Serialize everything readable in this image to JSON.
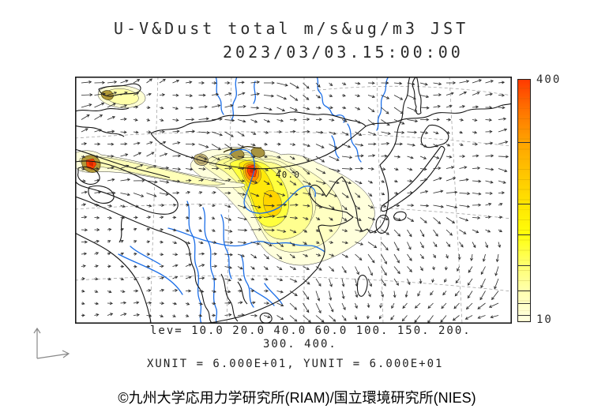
{
  "title": {
    "line1": "U-V&Dust total m/s&ug/m3 JST",
    "line2": "2023/03/03.15:00:00"
  },
  "captions": {
    "levels_line1": "lev= 10.0 20.0 40.0 60.0 100. 150. 200.",
    "levels_line2": "300. 400.",
    "units": "XUNIT = 6.000E+01, YUNIT = 6.000E+01",
    "copyright": "©九州大学応用力学研究所(RIAM)/国立環境研究所(NIES)"
  },
  "colorbar": {
    "max_label": "400",
    "min_label": "10",
    "min": 10,
    "max": 400,
    "tick_values": [
      20,
      40,
      60,
      100,
      150,
      200,
      300
    ],
    "top_color": "#FF3A00",
    "bottom_color": "#FFFFE2"
  },
  "map": {
    "contour_label": "40.0",
    "coast_color": "#151515",
    "river_color": "#1C6FE8",
    "graticule_color": "#9a9a9a",
    "dust_low_color": "#FFFFDC",
    "dust_high_color": "#FF4000",
    "wind": {
      "spacing_x": 16.5,
      "spacing_y": 15.5,
      "color": "#2B2B2B"
    }
  },
  "chart_data": {
    "type": "heatmap",
    "title": "U-V&Dust total m/s&ug/m3 JST",
    "timestamp": "2023/03/03.15:00:00",
    "region": "East Asia dust transport forecast map with wind vector overlay",
    "contour_levels": [
      10.0,
      20.0,
      40.0,
      60.0,
      100.0,
      150.0,
      200.0,
      300.0,
      400.0
    ],
    "colorbar_range": [
      10,
      400
    ],
    "legend_position": "right",
    "units": {
      "wind": "m/s",
      "dust": "ug/m3",
      "time_zone": "JST",
      "xunit": "6.000E+01",
      "yunit": "6.000E+01"
    },
    "visible_contour_labels": [
      "40.0"
    ],
    "dust_features": [
      {
        "location": "Gobi / Loess plateau main plume",
        "peak": "exceeds 400"
      },
      {
        "location": "western map edge (Tarim) plume",
        "peak": "exceeds 400"
      },
      {
        "location": "small northwest blob",
        "peak": "60-100"
      }
    ]
  }
}
